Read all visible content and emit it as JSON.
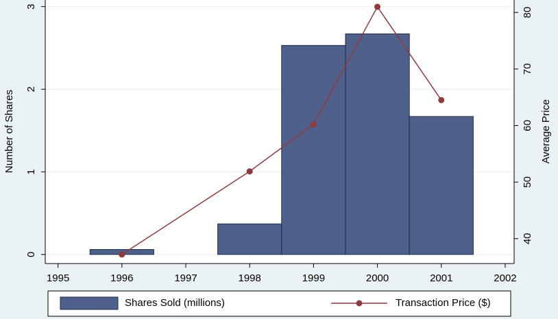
{
  "chart_data": {
    "type": "bar-line",
    "x": [
      1996,
      1998,
      1999,
      2000,
      2001
    ],
    "series": [
      {
        "name": "Shares Sold (millions)",
        "type": "bar",
        "color": "#4f608b",
        "values": [
          0.06,
          0.37,
          2.53,
          2.67,
          1.67
        ]
      },
      {
        "name": "Transaction Price ($)",
        "type": "line",
        "axis": "y2",
        "color": "#8f3a3f",
        "values": [
          37.2,
          51.9,
          60.2,
          81.0,
          64.5
        ]
      }
    ],
    "y_label": "Number of Shares",
    "y2_label": "Average Price",
    "xlim": [
      1994.8,
      2002.14
    ],
    "xticks": [
      1995,
      1996,
      1997,
      1998,
      1999,
      2000,
      2001,
      2002
    ],
    "ylim": [
      -0.11,
      3.08
    ],
    "yticks": [
      0,
      1,
      2,
      3
    ],
    "y2lim": [
      35.6,
      82.2
    ],
    "y2ticks": [
      40,
      50,
      60,
      70,
      80
    ],
    "grid": true,
    "legend": "bottom"
  }
}
